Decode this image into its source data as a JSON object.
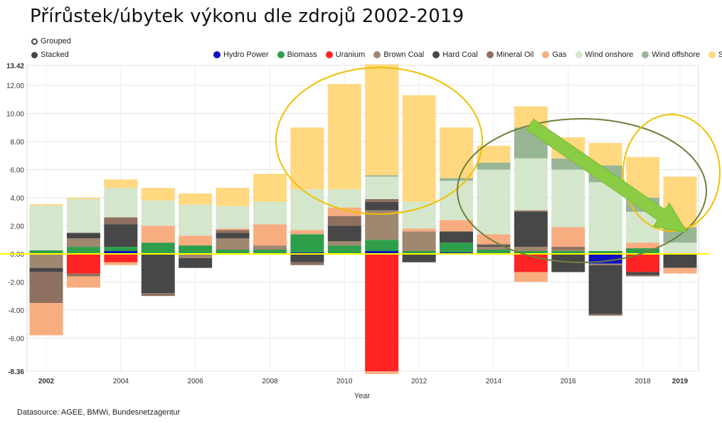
{
  "title": "Přírůstek/úbytek výkonu dle zdrojů 2002-2019",
  "controls": {
    "grouped_label": "Grouped",
    "stacked_label": "Stacked"
  },
  "datasource": "Datasource: AGEE, BMWi, Bundesnetzagentur",
  "chart_data": {
    "type": "bar",
    "stacked": true,
    "xlabel": "Year",
    "ylabel": "",
    "categories": [
      "2002",
      "2003",
      "2004",
      "2005",
      "2006",
      "2007",
      "2008",
      "2009",
      "2010",
      "2011",
      "2012",
      "2013",
      "2014",
      "2015",
      "2016",
      "2017",
      "2018",
      "2019"
    ],
    "x_tick_labels": [
      "2002",
      "",
      "2004",
      "",
      "2006",
      "",
      "2008",
      "",
      "2010",
      "",
      "2012",
      "",
      "2014",
      "",
      "2016",
      "",
      "2018",
      "2019"
    ],
    "bold_x_ticks": [
      "2002",
      "2019"
    ],
    "ylim": [
      -8.36,
      13.42
    ],
    "y_ticks": [
      -8.36,
      -6.0,
      -4.0,
      -2.0,
      0.0,
      2.0,
      4.0,
      6.0,
      8.0,
      10.0,
      12.0,
      13.42
    ],
    "y_tick_labels": [
      "-8.36",
      "-6.00",
      "-4.00",
      "-2.00",
      "0.00",
      "2.00",
      "4.00",
      "6.00",
      "8.00",
      "10.00",
      "12.00",
      "13.42"
    ],
    "bold_y_ticks": [
      "-8.36",
      "13.42"
    ],
    "grid": true,
    "legend_position": "top",
    "series": [
      {
        "name": "Hydro Power",
        "color": "#1010c0",
        "values": [
          0.05,
          0,
          0.2,
          0,
          0,
          0,
          0,
          0.1,
          0,
          0.2,
          0,
          0.1,
          0,
          0,
          0,
          -0.7,
          0,
          0
        ]
      },
      {
        "name": "Biomass",
        "color": "#2e9e4a",
        "values": [
          0.2,
          0.5,
          0.3,
          0.8,
          0.6,
          0.3,
          0.3,
          1.3,
          0.6,
          0.8,
          0.2,
          0.7,
          0.3,
          0.2,
          0.2,
          0.2,
          0.4,
          0
        ]
      },
      {
        "name": "Uranium",
        "color": "#ff2424",
        "values": [
          0,
          -1.4,
          -0.6,
          0,
          0,
          0,
          0,
          0,
          0,
          -8.36,
          0,
          0,
          0,
          -1.3,
          0,
          0,
          -1.3,
          0
        ]
      },
      {
        "name": "Brown Coal",
        "color": "#a08770",
        "values": [
          -1.0,
          0.6,
          0,
          0,
          -0.3,
          0.8,
          0.3,
          0,
          0.3,
          2.1,
          1.4,
          0,
          0.2,
          0.3,
          0.1,
          -0.1,
          0,
          0
        ]
      },
      {
        "name": "Hard Coal",
        "color": "#474747",
        "values": [
          -0.3,
          0.4,
          1.6,
          -2.8,
          -0.7,
          0.4,
          0,
          -0.6,
          1.1,
          0.6,
          -0.6,
          0.8,
          0.1,
          2.5,
          -1.3,
          -3.5,
          -0.2,
          -1.0
        ]
      },
      {
        "name": "Mineral Oil",
        "color": "#8e7060",
        "values": [
          -2.2,
          -0.2,
          0.5,
          -0.2,
          0,
          0.2,
          0,
          -0.2,
          0.7,
          0.2,
          0,
          0,
          0.1,
          0.1,
          0.2,
          -0.1,
          -0.1,
          0
        ]
      },
      {
        "name": "Gas",
        "color": "#f8ad80",
        "values": [
          -2.3,
          -0.8,
          -0.2,
          1.2,
          0.7,
          0.1,
          1.5,
          0.3,
          0.6,
          -0.2,
          0.2,
          0.8,
          0.7,
          -0.7,
          1.4,
          0,
          0.4,
          -0.4
        ]
      },
      {
        "name": "Wind onshore",
        "color": "#d4e6cc",
        "values": [
          3.2,
          2.4,
          2.1,
          1.8,
          2.2,
          1.6,
          1.6,
          2.9,
          1.3,
          1.6,
          1.9,
          2.8,
          4.6,
          3.7,
          4.1,
          4.9,
          2.2,
          0.8
        ]
      },
      {
        "name": "Wind offshore",
        "color": "#98b596",
        "values": [
          0,
          0,
          0,
          0,
          0,
          0,
          0,
          0,
          0,
          0.1,
          0,
          0.2,
          0.5,
          2.2,
          0.8,
          1.2,
          1.0,
          1.1
        ]
      },
      {
        "name": "Solar",
        "color": "#ffd880",
        "values": [
          0.1,
          0.1,
          0.6,
          0.9,
          0.8,
          1.3,
          2.0,
          4.4,
          7.5,
          7.9,
          7.6,
          3.6,
          1.2,
          1.5,
          1.5,
          1.6,
          2.9,
          3.6
        ]
      }
    ],
    "annotations": [
      {
        "type": "ellipse",
        "color": "#f0c000"
      },
      {
        "type": "ellipse",
        "color": "#6f7f3a"
      },
      {
        "type": "ellipse",
        "color": "#f0c000"
      },
      {
        "type": "arrow",
        "color": "#8acc44"
      },
      {
        "type": "zero-line",
        "color": "#ffff00"
      }
    ]
  }
}
